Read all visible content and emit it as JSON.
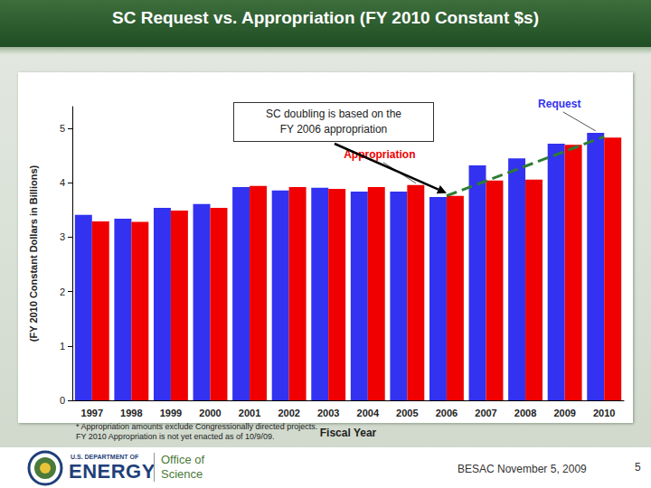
{
  "chart_data": {
    "type": "bar",
    "title": "SC Request vs. Appropriation (FY 2010 Constant $s)",
    "categories": [
      "1997",
      "1998",
      "1999",
      "2000",
      "2001",
      "2002",
      "2003",
      "2004",
      "2005",
      "2006",
      "2007",
      "2008",
      "2009",
      "2010"
    ],
    "series": [
      {
        "name": "Request",
        "color": "#3232f0",
        "values": [
          3.41,
          3.34,
          3.54,
          3.61,
          3.92,
          3.86,
          3.91,
          3.84,
          3.84,
          3.74,
          4.32,
          4.45,
          4.72,
          4.92
        ]
      },
      {
        "name": "Appropriation",
        "color": "#f00000",
        "values": [
          3.29,
          3.28,
          3.49,
          3.54,
          3.94,
          3.92,
          3.89,
          3.92,
          3.96,
          3.76,
          4.04,
          4.06,
          4.7,
          4.83
        ]
      },
      {
        "type": "line",
        "color": "#2e7d32",
        "line_style": "dashed",
        "values": [
          null,
          null,
          null,
          null,
          null,
          null,
          null,
          null,
          null,
          3.76,
          null,
          null,
          null,
          4.85
        ]
      }
    ],
    "x_label": "Fiscal Year",
    "y_label": "(FY 2010 Constant Dollars in Billions)",
    "ylim": [
      0,
      5.4
    ],
    "yticks": [
      0,
      1,
      2,
      3,
      4,
      5
    ],
    "grid": false,
    "annotations": [
      "SC doubling is based on the FY 2006 appropriation"
    ],
    "notes": [
      "* Appropriation amounts exclude Congressionally directed projects.",
      "FY 2010 Appropriation is not yet enacted as of 10/9/09."
    ]
  },
  "footer": {
    "agency_top": "U.S. DEPARTMENT OF",
    "agency": "ENERGY",
    "office_top": "Office of",
    "office": "Science",
    "meeting": "BESAC November 5, 2009",
    "page": "5"
  }
}
